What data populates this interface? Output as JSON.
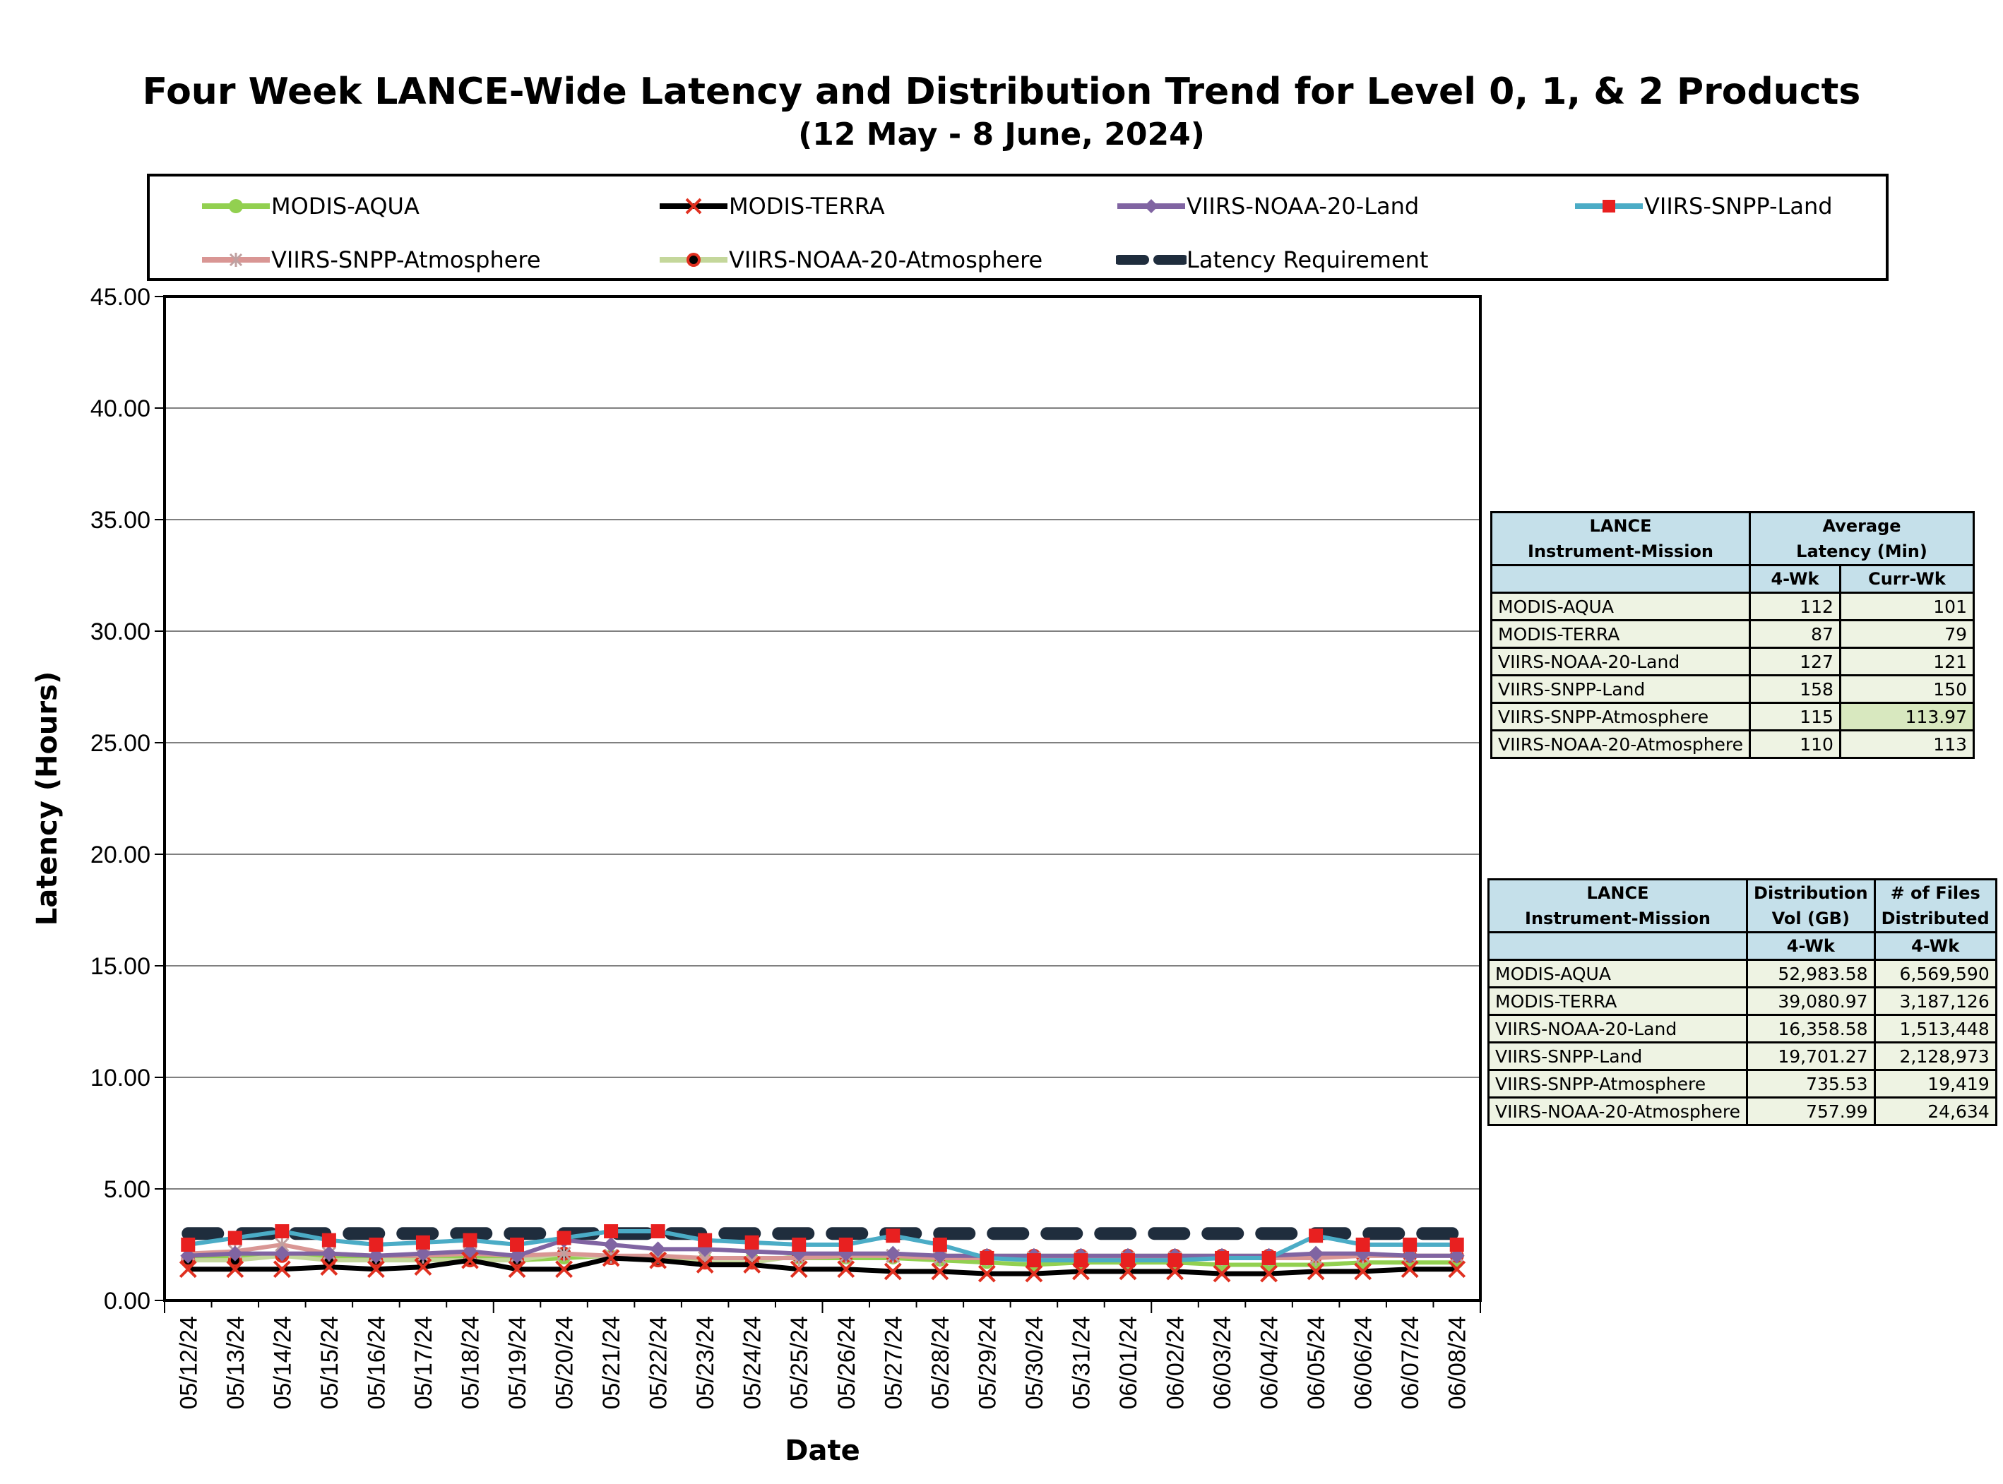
{
  "title": "Four Week LANCE-Wide Latency and Distribution Trend for Level 0, 1, & 2 Products",
  "subtitle": "(12  May    -  8  June,  2024)",
  "legend": [
    {
      "name": "MODIS-AQUA",
      "color": "#92d050",
      "marker": "circle",
      "icon": "green-circle-line"
    },
    {
      "name": "MODIS-TERRA",
      "color": "#000000",
      "marker": "x",
      "icon": "black-x-line"
    },
    {
      "name": "VIIRS-NOAA-20-Land",
      "color": "#8064a2",
      "marker": "diamond",
      "icon": "purple-diamond-line"
    },
    {
      "name": "VIIRS-SNPP-Land",
      "color": "#4bacc6",
      "marker": "square",
      "icon": "blue-square-line"
    },
    {
      "name": "VIIRS-SNPP-Atmosphere",
      "color": "#d99694",
      "marker": "star",
      "icon": "pink-star-line"
    },
    {
      "name": "VIIRS-NOAA-20-Atmosphere",
      "color": "#c4d79b",
      "marker": "dot",
      "icon": "lightgreen-dot-line"
    },
    {
      "name": "Latency Requirement",
      "color": "#1f2d3d",
      "marker": "dash",
      "icon": "dashed-line"
    }
  ],
  "chart_data": {
    "type": "line",
    "title": "Four Week LANCE-Wide Latency and Distribution Trend for Level 0, 1, & 2 Products",
    "xlabel": "Date",
    "ylabel": "Latency (Hours)",
    "ylim": [
      0,
      45
    ],
    "yticks": [
      "0.00",
      "5.00",
      "10.00",
      "15.00",
      "20.00",
      "25.00",
      "30.00",
      "35.00",
      "40.00",
      "45.00"
    ],
    "grid": true,
    "legend_position": "top",
    "categories": [
      "05/12/24",
      "05/13/24",
      "05/14/24",
      "05/15/24",
      "05/16/24",
      "05/17/24",
      "05/18/24",
      "05/19/24",
      "05/20/24",
      "05/21/24",
      "05/22/24",
      "05/23/24",
      "05/24/24",
      "05/25/24",
      "05/26/24",
      "05/27/24",
      "05/28/24",
      "05/29/24",
      "05/30/24",
      "05/31/24",
      "06/01/24",
      "06/02/24",
      "06/03/24",
      "06/04/24",
      "06/05/24",
      "06/06/24",
      "06/07/24",
      "06/08/24"
    ],
    "series": [
      {
        "name": "MODIS-AQUA",
        "color": "#92d050",
        "marker": "circle",
        "values": [
          1.9,
          1.9,
          2.0,
          1.9,
          1.9,
          1.9,
          2.0,
          1.8,
          1.9,
          2.0,
          1.9,
          1.9,
          1.9,
          1.9,
          1.9,
          1.9,
          1.8,
          1.7,
          1.6,
          1.7,
          1.7,
          1.7,
          1.6,
          1.6,
          1.6,
          1.7,
          1.7,
          1.7
        ]
      },
      {
        "name": "MODIS-TERRA",
        "color": "#000000",
        "marker": "x",
        "values": [
          1.4,
          1.4,
          1.4,
          1.5,
          1.4,
          1.5,
          1.8,
          1.4,
          1.4,
          1.9,
          1.8,
          1.6,
          1.6,
          1.4,
          1.4,
          1.3,
          1.3,
          1.2,
          1.2,
          1.3,
          1.3,
          1.3,
          1.2,
          1.2,
          1.3,
          1.3,
          1.4,
          1.4
        ]
      },
      {
        "name": "VIIRS-NOAA-20-Land",
        "color": "#8064a2",
        "marker": "diamond",
        "values": [
          2.0,
          2.1,
          2.1,
          2.1,
          2.0,
          2.1,
          2.2,
          2.0,
          2.7,
          2.5,
          2.3,
          2.3,
          2.2,
          2.1,
          2.1,
          2.1,
          2.0,
          2.0,
          2.0,
          2.0,
          2.0,
          2.0,
          2.0,
          2.0,
          2.1,
          2.1,
          2.0,
          2.0
        ]
      },
      {
        "name": "VIIRS-SNPP-Land",
        "color": "#4bacc6",
        "marker": "square",
        "values": [
          2.5,
          2.8,
          3.1,
          2.7,
          2.5,
          2.6,
          2.7,
          2.5,
          2.8,
          3.1,
          3.1,
          2.7,
          2.6,
          2.5,
          2.5,
          2.9,
          2.5,
          1.9,
          1.8,
          1.8,
          1.8,
          1.8,
          1.9,
          1.9,
          2.9,
          2.5,
          2.5,
          2.5
        ]
      },
      {
        "name": "VIIRS-SNPP-Atmosphere",
        "color": "#d99694",
        "marker": "star",
        "values": [
          2.1,
          2.2,
          2.5,
          2.1,
          2.0,
          2.0,
          2.1,
          2.0,
          2.1,
          2.0,
          2.0,
          1.9,
          1.9,
          1.9,
          2.0,
          2.0,
          1.9,
          1.9,
          1.9,
          1.9,
          1.9,
          1.9,
          1.9,
          1.9,
          1.9,
          2.0,
          2.0,
          2.0
        ]
      },
      {
        "name": "VIIRS-NOAA-20-Atmosphere",
        "color": "#c4d79b",
        "marker": "dot",
        "values": [
          1.8,
          1.8,
          2.0,
          1.8,
          1.8,
          1.8,
          1.8,
          1.8,
          2.1,
          1.9,
          1.8,
          1.7,
          1.7,
          2.0,
          2.0,
          2.0,
          2.0,
          2.0,
          2.0,
          2.0,
          2.0,
          2.0,
          2.0,
          2.0,
          2.0,
          2.0,
          2.0,
          2.0
        ]
      },
      {
        "name": "Latency Requirement",
        "color": "#1f2d3d",
        "marker": "dash",
        "values": [
          3.0,
          3.0,
          3.0,
          3.0,
          3.0,
          3.0,
          3.0,
          3.0,
          3.0,
          3.0,
          3.0,
          3.0,
          3.0,
          3.0,
          3.0,
          3.0,
          3.0,
          3.0,
          3.0,
          3.0,
          3.0,
          3.0,
          3.0,
          3.0,
          3.0,
          3.0,
          3.0,
          3.0
        ]
      }
    ]
  },
  "latency_table": {
    "header1": "LANCE",
    "header1b": "Instrument-Mission",
    "header2": "Average",
    "header2b": "Latency (Min)",
    "sub1": "4-Wk",
    "sub2": "Curr-Wk",
    "rows": [
      {
        "name": "MODIS-AQUA",
        "four_wk": "112",
        "curr_wk": "101"
      },
      {
        "name": "MODIS-TERRA",
        "four_wk": "87",
        "curr_wk": "79"
      },
      {
        "name": "VIIRS-NOAA-20-Land",
        "four_wk": "127",
        "curr_wk": "121"
      },
      {
        "name": "VIIRS-SNPP-Land",
        "four_wk": "158",
        "curr_wk": "150"
      },
      {
        "name": "VIIRS-SNPP-Atmosphere",
        "four_wk": "115",
        "curr_wk": "113.97"
      },
      {
        "name": "VIIRS-NOAA-20-Atmosphere",
        "four_wk": "110",
        "curr_wk": "113"
      }
    ]
  },
  "distribution_table": {
    "header1": "LANCE",
    "header1b": "Instrument-Mission",
    "header2": "Distribution",
    "header2b": "Vol (GB)",
    "header3": "# of Files",
    "header3b": "Distributed",
    "sub1": "4-Wk",
    "sub2": "4-Wk",
    "rows": [
      {
        "name": "MODIS-AQUA",
        "vol": "52,983.58",
        "files": "6,569,590"
      },
      {
        "name": "MODIS-TERRA",
        "vol": "39,080.97",
        "files": "3,187,126"
      },
      {
        "name": "VIIRS-NOAA-20-Land",
        "vol": "16,358.58",
        "files": "1,513,448"
      },
      {
        "name": "VIIRS-SNPP-Land",
        "vol": "19,701.27",
        "files": "2,128,973"
      },
      {
        "name": "VIIRS-SNPP-Atmosphere",
        "vol": "735.53",
        "files": "19,419"
      },
      {
        "name": "VIIRS-NOAA-20-Atmosphere",
        "vol": "757.99",
        "files": "24,634"
      }
    ]
  }
}
